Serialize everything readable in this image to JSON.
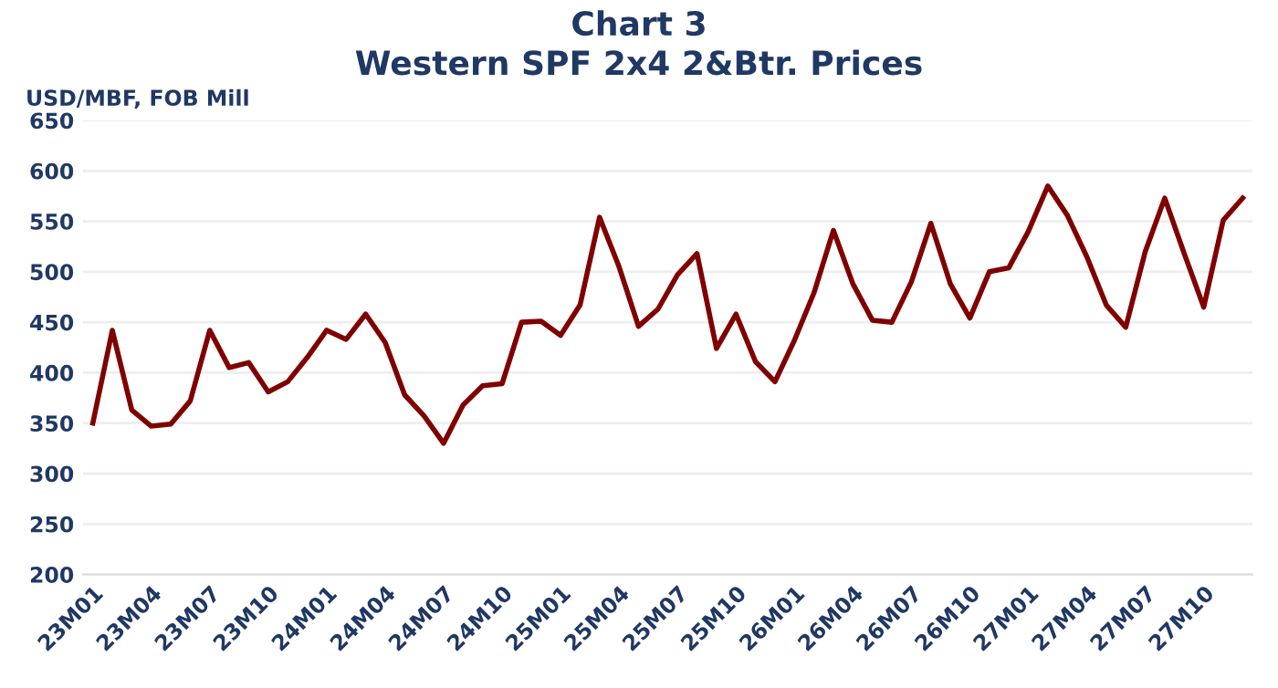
{
  "chart_data": {
    "type": "line",
    "title": "Chart 3\nWestern SPF 2x4 2&Btr. Prices",
    "ylabel": "USD/MBF, FOB Mill",
    "categories": [
      "23M01",
      null,
      null,
      "23M04",
      null,
      null,
      "23M07",
      null,
      null,
      "23M10",
      null,
      null,
      "24M01",
      null,
      null,
      "24M04",
      null,
      null,
      "24M07",
      null,
      null,
      "24M10",
      null,
      null,
      "25M01",
      null,
      null,
      "25M04",
      null,
      null,
      "25M07",
      null,
      null,
      "25M10",
      null,
      null,
      "26M01",
      null,
      null,
      "26M04",
      null,
      null,
      "26M07",
      null,
      null,
      "26M10",
      null,
      null,
      "27M01",
      null,
      null,
      "27M04",
      null,
      null,
      "27M07",
      null,
      null,
      "27M10",
      null,
      null
    ],
    "series": [
      {
        "color": "#800000",
        "values": [
          350,
          442,
          363,
          347,
          349,
          372,
          442,
          405,
          410,
          381,
          391,
          415,
          442,
          433,
          458,
          430,
          378,
          357,
          330,
          368,
          387,
          389,
          450,
          451,
          437,
          467,
          554,
          505,
          446,
          463,
          497,
          518,
          424,
          458,
          411,
          391,
          432,
          479,
          541,
          488,
          452,
          450,
          490,
          548,
          488,
          454,
          500,
          504,
          540,
          585,
          556,
          515,
          467,
          445,
          520,
          573,
          518,
          465,
          551,
          573
        ]
      }
    ],
    "ylim": [
      200,
      650
    ],
    "yticks": [
      200,
      250,
      300,
      350,
      400,
      450,
      500,
      550,
      600,
      650
    ],
    "grid": "y",
    "legend": false,
    "marker": "none",
    "line_style": "solid"
  }
}
